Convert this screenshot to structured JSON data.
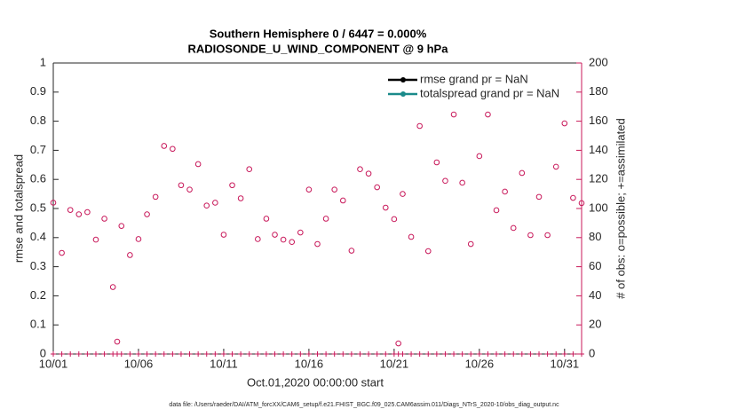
{
  "chart_data": {
    "type": "scatter",
    "title": "Southern Hemisphere 0 / 6447 = 0.000%",
    "subtitle": "RADIOSONDE_U_WIND_COMPONENT @ 9 hPa",
    "x_label": "Oct.01,2020 00:00:00 start",
    "y_label": "rmse and totalspread",
    "y2_label": "# of obs: o=possible; +=assimilated",
    "footnote": "data file: /Users/raeder/DAI/ATM_forcXX/CAM6_setup/f.e21.FHIST_BGC.f09_025.CAM6assim.011/Diags_NTrS_2020-10/obs_diag_output.nc",
    "legend": [
      {
        "name": "rmse grand pr = NaN",
        "color": "#000000"
      },
      {
        "name": "totalspread grand pr = NaN",
        "color": "#1a8a8a"
      }
    ],
    "legend_position": "upper right",
    "xlim": [
      0,
      31
    ],
    "xticks": [
      {
        "value": 0,
        "label": "10/01"
      },
      {
        "value": 5,
        "label": "10/06"
      },
      {
        "value": 10,
        "label": "10/11"
      },
      {
        "value": 15,
        "label": "10/16"
      },
      {
        "value": 20,
        "label": "10/21"
      },
      {
        "value": 25,
        "label": "10/26"
      },
      {
        "value": 30,
        "label": "10/31"
      }
    ],
    "ylim": [
      0,
      1
    ],
    "yticks": [
      0,
      0.1,
      0.2,
      0.3,
      0.4,
      0.5,
      0.6,
      0.7,
      0.8,
      0.9,
      1
    ],
    "y2lim": [
      0,
      200
    ],
    "y2ticks": [
      0,
      20,
      40,
      60,
      80,
      100,
      120,
      140,
      160,
      180,
      200
    ],
    "y2color": "#c8185a",
    "x": [
      0,
      0.5,
      1,
      1.5,
      2,
      2.5,
      3,
      3.5,
      3.75,
      4,
      4.5,
      5,
      5.5,
      6,
      6.5,
      7,
      7.5,
      8,
      8.5,
      9,
      9.5,
      10,
      10.5,
      11,
      11.5,
      12,
      12.5,
      13,
      13.5,
      14,
      14.5,
      15,
      15.5,
      16,
      16.5,
      17,
      17.5,
      18,
      18.5,
      19,
      19.5,
      20,
      20.25,
      20.5,
      21,
      21.5,
      22,
      22.5,
      23,
      23.5,
      24,
      24.5,
      25,
      25.5,
      26,
      26.5,
      27,
      27.5,
      28,
      28.5,
      29,
      29.5,
      30,
      30.5,
      31
    ],
    "series": [
      {
        "marker": "circle",
        "color": "#c8185a",
        "axis": "y2",
        "values": [
          104,
          69.5,
          99,
          96,
          97.5,
          78.6,
          93,
          46,
          8.5,
          88,
          68,
          79,
          96,
          108,
          143,
          141,
          116,
          113,
          130.5,
          102,
          104,
          82,
          116,
          107,
          127,
          79,
          93,
          82,
          78.6,
          77,
          83.5,
          113,
          75.6,
          93,
          113,
          105.5,
          71,
          127,
          124,
          114.6,
          100.6,
          92.7,
          7.3,
          110,
          80.5,
          156.7,
          70.7,
          131.7,
          119,
          164.6,
          117.7,
          75.6,
          136,
          164.6,
          98.8,
          111.6,
          86.6,
          124.4,
          81.7,
          108,
          81.7,
          128.7,
          158.5,
          107.3,
          103.7
        ]
      },
      {
        "marker": "plus",
        "color": "#c8185a",
        "axis": "y2",
        "values": [
          0,
          0,
          0,
          0,
          0,
          0,
          0,
          0,
          0,
          0,
          0,
          0,
          0,
          0,
          0,
          0,
          0,
          0,
          0,
          0,
          0,
          0,
          0,
          0,
          0,
          0,
          0,
          0,
          0,
          0,
          0,
          0,
          0,
          0,
          0,
          0,
          0,
          0,
          0,
          0,
          0,
          0,
          0,
          0,
          0,
          0,
          0,
          0,
          0,
          0,
          0,
          0,
          0,
          0,
          0,
          0,
          0,
          0,
          0,
          0,
          0,
          0,
          0,
          0,
          0
        ]
      }
    ]
  }
}
